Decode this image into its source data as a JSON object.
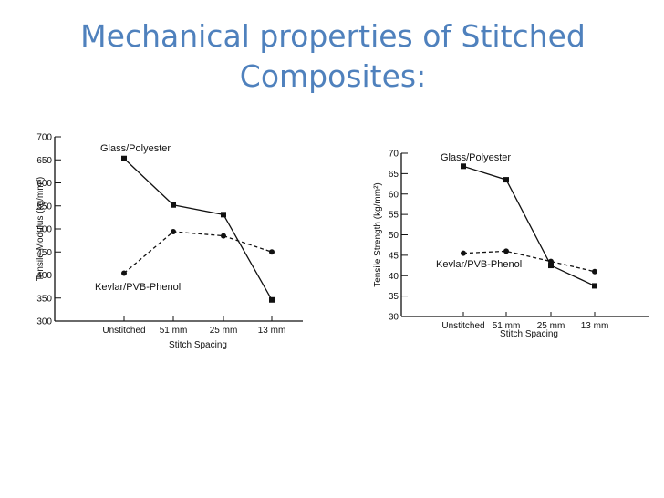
{
  "title": {
    "line1": "Mechanical properties of Stitched",
    "line2": "Composites:"
  },
  "colors": {
    "title": "#4f81bd",
    "ink": "#111111"
  },
  "chart_data": [
    {
      "type": "line",
      "categories": [
        "Unstitched",
        "51 mm",
        "25 mm",
        "13 mm"
      ],
      "xlabel": "Stitch Spacing",
      "ylabel": "Tensile Modulus (kg/mm²)",
      "ylim": [
        300,
        700
      ],
      "yticks": [
        300,
        350,
        400,
        450,
        500,
        550,
        600,
        650,
        700
      ],
      "grid": false,
      "series": [
        {
          "name": "Glass/Polyester",
          "marker": "square",
          "line": "solid",
          "values": [
            653,
            552,
            531,
            346
          ]
        },
        {
          "name": "Kevlar/PVB-Phenol",
          "marker": "circle",
          "line": "dashed",
          "values": [
            404,
            494,
            485,
            450
          ]
        }
      ]
    },
    {
      "type": "line",
      "categories": [
        "Unstitched",
        "51 mm",
        "25 mm",
        "13 mm"
      ],
      "xlabel": "Stitch Spacing",
      "ylabel": "Tensile Strength (kg/mm²)",
      "ylim": [
        30,
        70
      ],
      "yticks": [
        30,
        35,
        40,
        45,
        50,
        55,
        60,
        65,
        70
      ],
      "grid": false,
      "series": [
        {
          "name": "Glass/Polyester",
          "marker": "square",
          "line": "solid",
          "values": [
            66.8,
            63.5,
            42.5,
            37.5
          ]
        },
        {
          "name": "Kevlar/PVB-Phenol",
          "marker": "circle",
          "line": "dashed",
          "values": [
            45.5,
            46,
            43.5,
            41
          ]
        }
      ]
    }
  ]
}
